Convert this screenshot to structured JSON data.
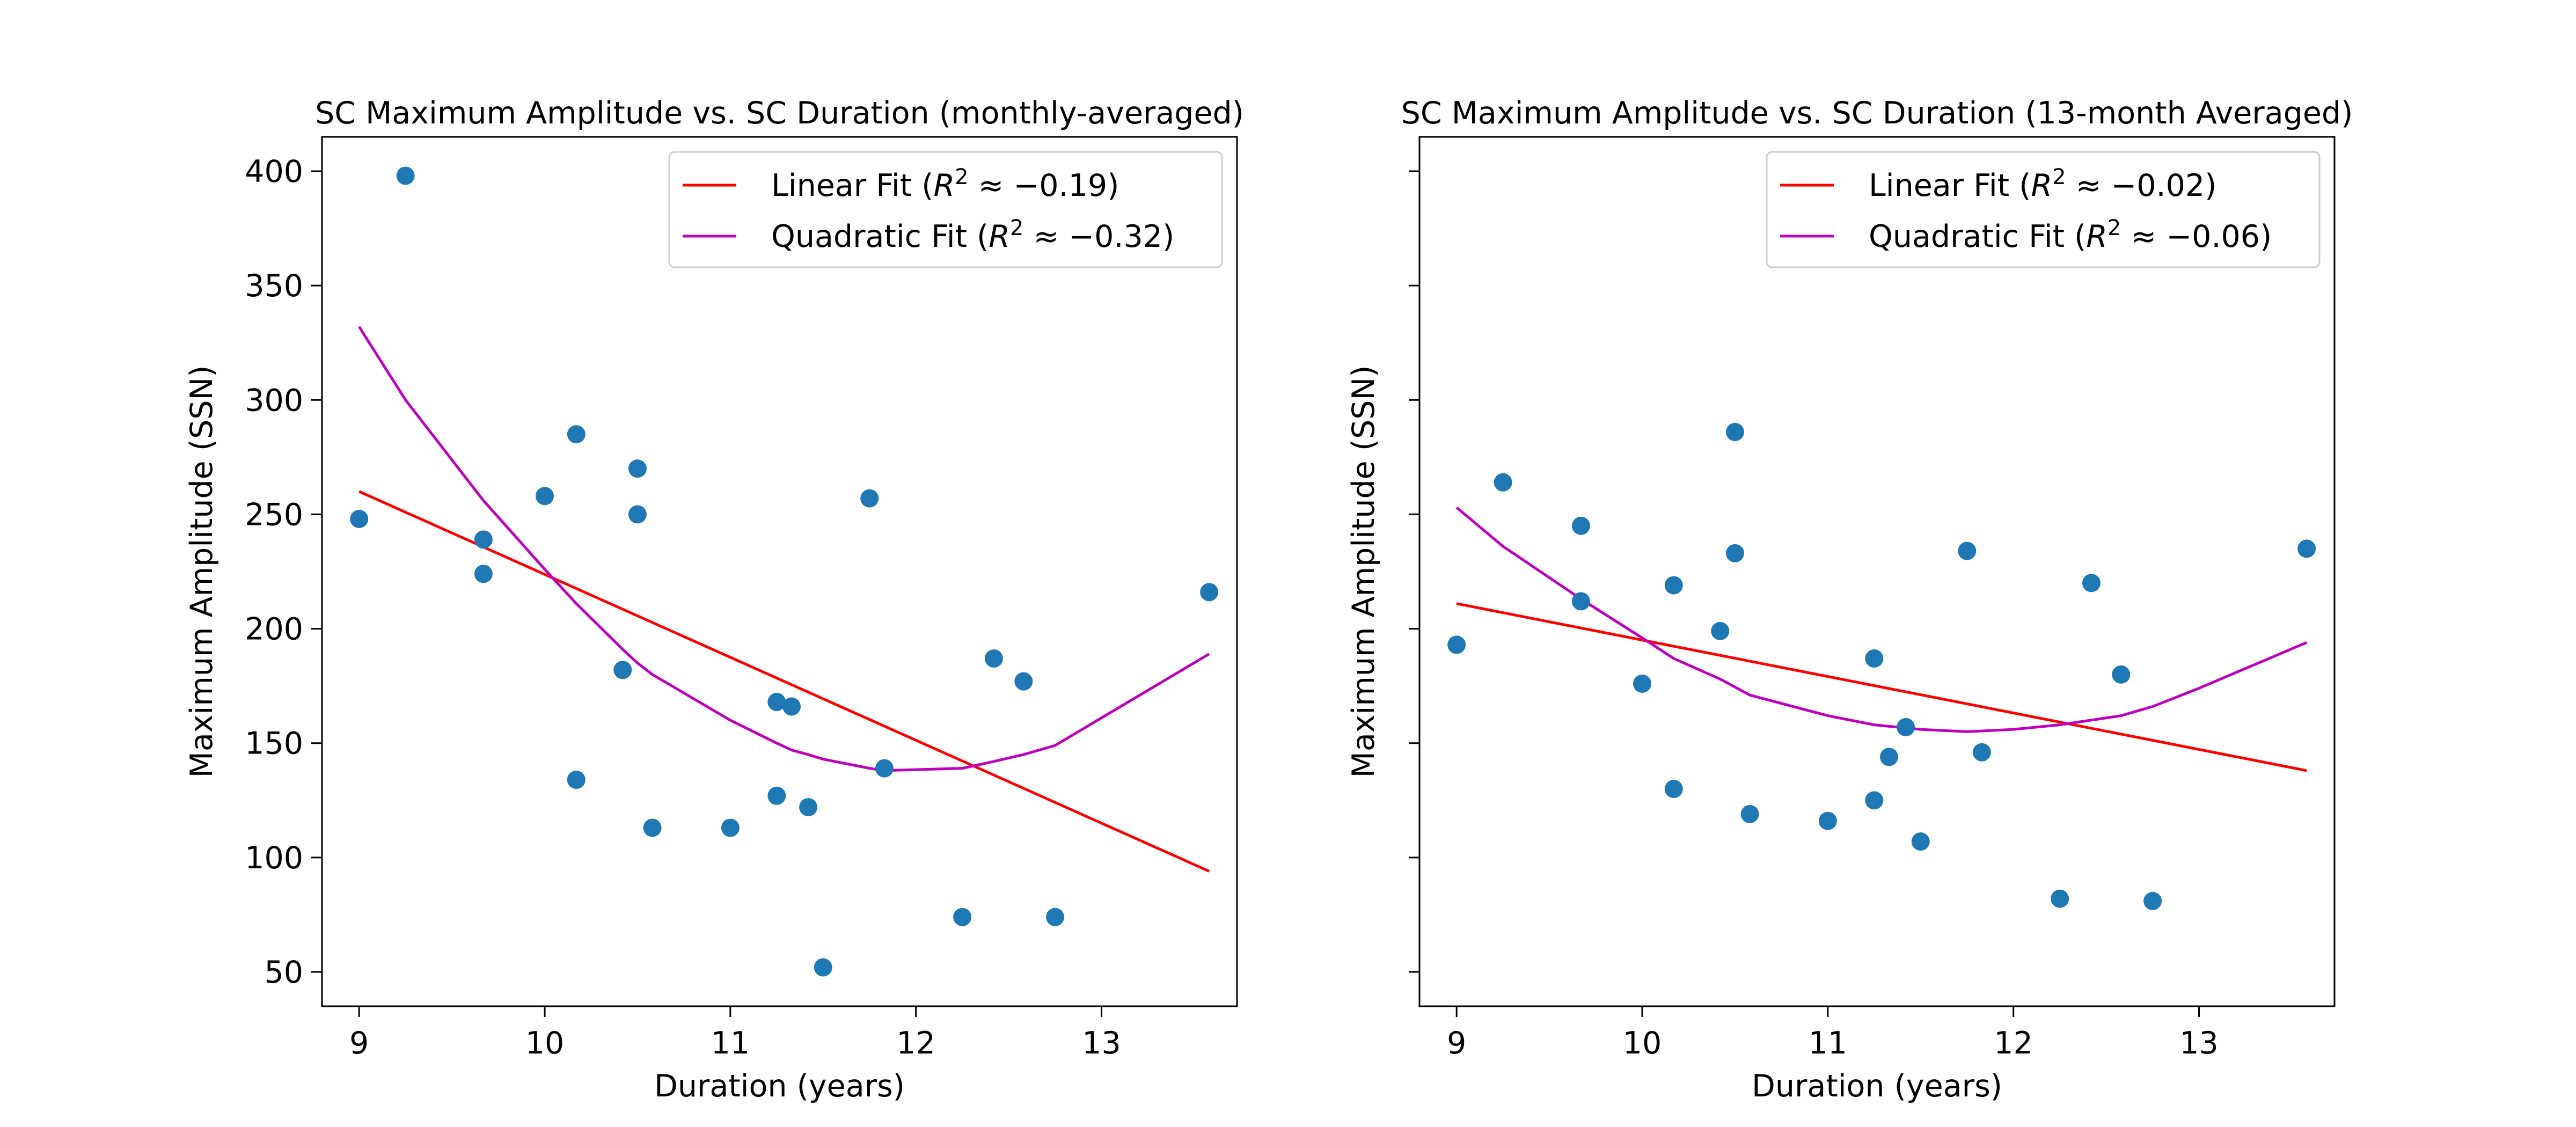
{
  "chart_data": [
    {
      "type": "scatter",
      "title": "SC Maximum Amplitude vs. SC Duration (monthly-averaged)",
      "xlabel": "Duration (years)",
      "ylabel": "Maximum Amplitude (SSN)",
      "xlim": [
        8.8,
        13.73
      ],
      "ylim": [
        35,
        415
      ],
      "x_ticks": [
        9,
        10,
        11,
        12,
        13
      ],
      "y_ticks": [
        50,
        100,
        150,
        200,
        250,
        300,
        350,
        400
      ],
      "show_y_tick_labels": true,
      "grid": false,
      "legend_position": "upper right",
      "series": [
        {
          "name": "",
          "kind": "points",
          "color": "#1f77b4",
          "points": [
            [
              9.0,
              248
            ],
            [
              9.25,
              398
            ],
            [
              9.67,
              239
            ],
            [
              9.67,
              224
            ],
            [
              10.0,
              258
            ],
            [
              10.17,
              285
            ],
            [
              10.17,
              134
            ],
            [
              10.42,
              182
            ],
            [
              10.5,
              270
            ],
            [
              10.5,
              250
            ],
            [
              10.58,
              113
            ],
            [
              11.0,
              113
            ],
            [
              11.25,
              168
            ],
            [
              11.25,
              127
            ],
            [
              11.33,
              166
            ],
            [
              11.42,
              122
            ],
            [
              11.5,
              52
            ],
            [
              11.75,
              257
            ],
            [
              11.83,
              139
            ],
            [
              12.25,
              74
            ],
            [
              12.42,
              187
            ],
            [
              12.58,
              177
            ],
            [
              12.75,
              74
            ],
            [
              13.58,
              216
            ]
          ]
        },
        {
          "name": "Linear Fit ($R^2 \\approx -0.19$)",
          "legend_prefix": "Linear Fit (",
          "legend_suffix": " ≈ −0.19)",
          "kind": "line",
          "color": "#ff0000",
          "x": [
            9.0,
            13.58
          ],
          "y": [
            260,
            94
          ]
        },
        {
          "name": "Quadratic Fit ($R^2 \\approx -0.32$)",
          "legend_prefix": "Quadratic Fit (",
          "legend_suffix": " ≈ −0.32)",
          "kind": "line",
          "color": "#bf00bf",
          "x": [
            9.0,
            9.25,
            9.67,
            10.0,
            10.17,
            10.42,
            10.5,
            10.58,
            11.0,
            11.25,
            11.33,
            11.42,
            11.5,
            11.75,
            11.83,
            12.25,
            12.42,
            12.58,
            12.75,
            13.58
          ],
          "y": [
            332,
            300,
            256,
            226,
            211,
            191,
            185,
            180,
            160,
            150,
            147,
            145,
            143,
            139,
            138,
            139,
            142,
            145,
            149,
            189
          ]
        }
      ]
    },
    {
      "type": "scatter",
      "title": "SC Maximum Amplitude vs. SC Duration (13-month Averaged)",
      "xlabel": "Duration (years)",
      "ylabel": "Maximum Amplitude (SSN)",
      "xlim": [
        8.8,
        13.73
      ],
      "ylim": [
        35,
        415
      ],
      "x_ticks": [
        9,
        10,
        11,
        12,
        13
      ],
      "y_ticks": [
        50,
        100,
        150,
        200,
        250,
        300,
        350,
        400
      ],
      "show_y_tick_labels": false,
      "grid": false,
      "legend_position": "upper right",
      "series": [
        {
          "name": "",
          "kind": "points",
          "color": "#1f77b4",
          "points": [
            [
              9.0,
              193
            ],
            [
              9.25,
              264
            ],
            [
              9.67,
              245
            ],
            [
              9.67,
              212
            ],
            [
              10.0,
              176
            ],
            [
              10.17,
              219
            ],
            [
              10.17,
              130
            ],
            [
              10.42,
              199
            ],
            [
              10.5,
              286
            ],
            [
              10.5,
              233
            ],
            [
              10.58,
              119
            ],
            [
              11.0,
              116
            ],
            [
              11.25,
              187
            ],
            [
              11.25,
              125
            ],
            [
              11.33,
              144
            ],
            [
              11.42,
              157
            ],
            [
              11.5,
              107
            ],
            [
              11.75,
              234
            ],
            [
              11.83,
              146
            ],
            [
              12.25,
              82
            ],
            [
              12.42,
              220
            ],
            [
              12.58,
              180
            ],
            [
              12.75,
              81
            ],
            [
              13.58,
              235
            ]
          ]
        },
        {
          "name": "Linear Fit ($R^2 \\approx -0.02$)",
          "legend_prefix": "Linear Fit (",
          "legend_suffix": " ≈ −0.02)",
          "kind": "line",
          "color": "#ff0000",
          "x": [
            9.0,
            13.58
          ],
          "y": [
            211,
            138
          ]
        },
        {
          "name": "Quadratic Fit ($R^2 \\approx -0.06$)",
          "legend_prefix": "Quadratic Fit (",
          "legend_suffix": " ≈ −0.06)",
          "kind": "line",
          "color": "#bf00bf",
          "x": [
            9.0,
            9.25,
            9.67,
            10.0,
            10.17,
            10.42,
            10.58,
            11.0,
            11.25,
            11.5,
            11.75,
            12.0,
            12.25,
            12.58,
            12.75,
            13.0,
            13.58
          ],
          "y": [
            253,
            236,
            213,
            196,
            187,
            178,
            171,
            162,
            158,
            156,
            155,
            156,
            158,
            162,
            166,
            174,
            194
          ]
        }
      ]
    }
  ]
}
